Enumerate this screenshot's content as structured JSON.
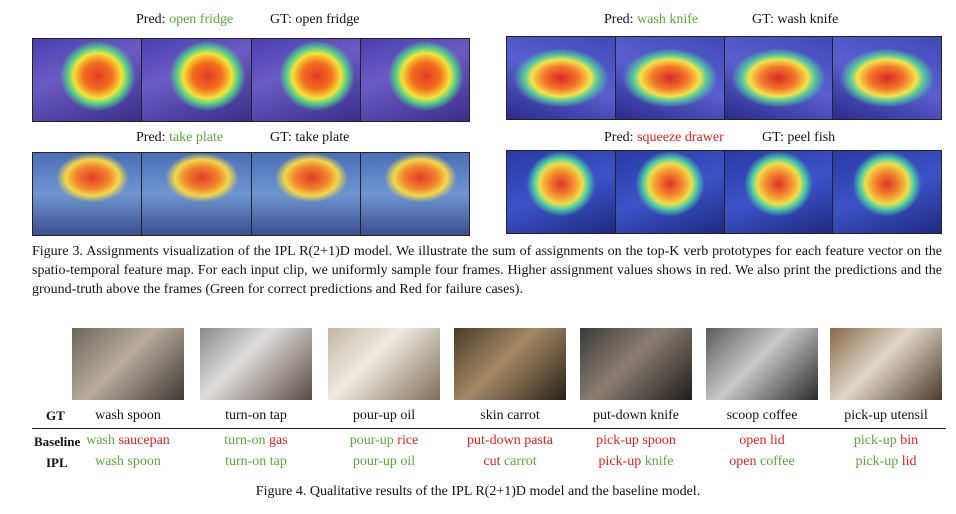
{
  "figure3": {
    "panels": [
      {
        "pred_prefix": "Pred: ",
        "pred": "open fridge",
        "pred_status": "correct",
        "gt": "GT: open fridge"
      },
      {
        "pred_prefix": "Pred: ",
        "pred": "wash knife",
        "pred_status": "correct",
        "gt": "GT: wash knife"
      },
      {
        "pred_prefix": "Pred: ",
        "pred": "take plate",
        "pred_status": "correct",
        "gt": "GT: take plate"
      },
      {
        "pred_prefix": "Pred: ",
        "pred": "squeeze drawer",
        "pred_status": "failure",
        "gt": "GT: peel fish"
      }
    ],
    "caption": "Figure 3.  Assignments visualization of the IPL R(2+1)D model.  We illustrate the sum of assignments on the top-K verb prototypes for each feature vector on the spatio-temporal feature map. For each input clip, we uniformly sample four frames.  Higher assignment values shows in red. We also print the predictions and the ground-truth above the frames (Green for correct predictions and Red for failure cases)."
  },
  "figure4": {
    "row_labels": {
      "gt": "GT",
      "baseline": "Baseline",
      "ipl": "IPL"
    },
    "columns": [
      {
        "gt": "wash spoon",
        "baseline": [
          {
            "w": "wash",
            "c": "green"
          },
          {
            "w": "saucepan",
            "c": "red"
          }
        ],
        "ipl": [
          {
            "w": "wash",
            "c": "green"
          },
          {
            "w": "spoon",
            "c": "green"
          }
        ]
      },
      {
        "gt": "turn-on tap",
        "baseline": [
          {
            "w": "turn-on",
            "c": "green"
          },
          {
            "w": "gas",
            "c": "red"
          }
        ],
        "ipl": [
          {
            "w": "turn-on",
            "c": "green"
          },
          {
            "w": "tap",
            "c": "green"
          }
        ]
      },
      {
        "gt": "pour-up oil",
        "baseline": [
          {
            "w": "pour-up",
            "c": "green"
          },
          {
            "w": "rice",
            "c": "red"
          }
        ],
        "ipl": [
          {
            "w": "pour-up",
            "c": "green"
          },
          {
            "w": "oil",
            "c": "green"
          }
        ]
      },
      {
        "gt": "skin carrot",
        "baseline": [
          {
            "w": "put-down",
            "c": "red"
          },
          {
            "w": "pasta",
            "c": "red"
          }
        ],
        "ipl": [
          {
            "w": "cut",
            "c": "red"
          },
          {
            "w": "carrot",
            "c": "green"
          }
        ]
      },
      {
        "gt": "put-down knife",
        "baseline": [
          {
            "w": "pick-up",
            "c": "red"
          },
          {
            "w": "spoon",
            "c": "red"
          }
        ],
        "ipl": [
          {
            "w": "pick-up",
            "c": "red"
          },
          {
            "w": "knife",
            "c": "green"
          }
        ]
      },
      {
        "gt": "scoop coffee",
        "baseline": [
          {
            "w": "open",
            "c": "red"
          },
          {
            "w": "lid",
            "c": "red"
          }
        ],
        "ipl": [
          {
            "w": "open",
            "c": "red"
          },
          {
            "w": "coffee",
            "c": "green"
          }
        ]
      },
      {
        "gt": "pick-up utensil",
        "baseline": [
          {
            "w": "pick-up",
            "c": "green"
          },
          {
            "w": "bin",
            "c": "red"
          }
        ],
        "ipl": [
          {
            "w": "pick-up",
            "c": "green"
          },
          {
            "w": "lid",
            "c": "red"
          }
        ]
      }
    ],
    "caption": "Figure 4.  Qualitative results of the IPL R(2+1)D model and the baseline model."
  },
  "colors": {
    "correct": "#5aa63c",
    "failure": "#e0211d"
  }
}
